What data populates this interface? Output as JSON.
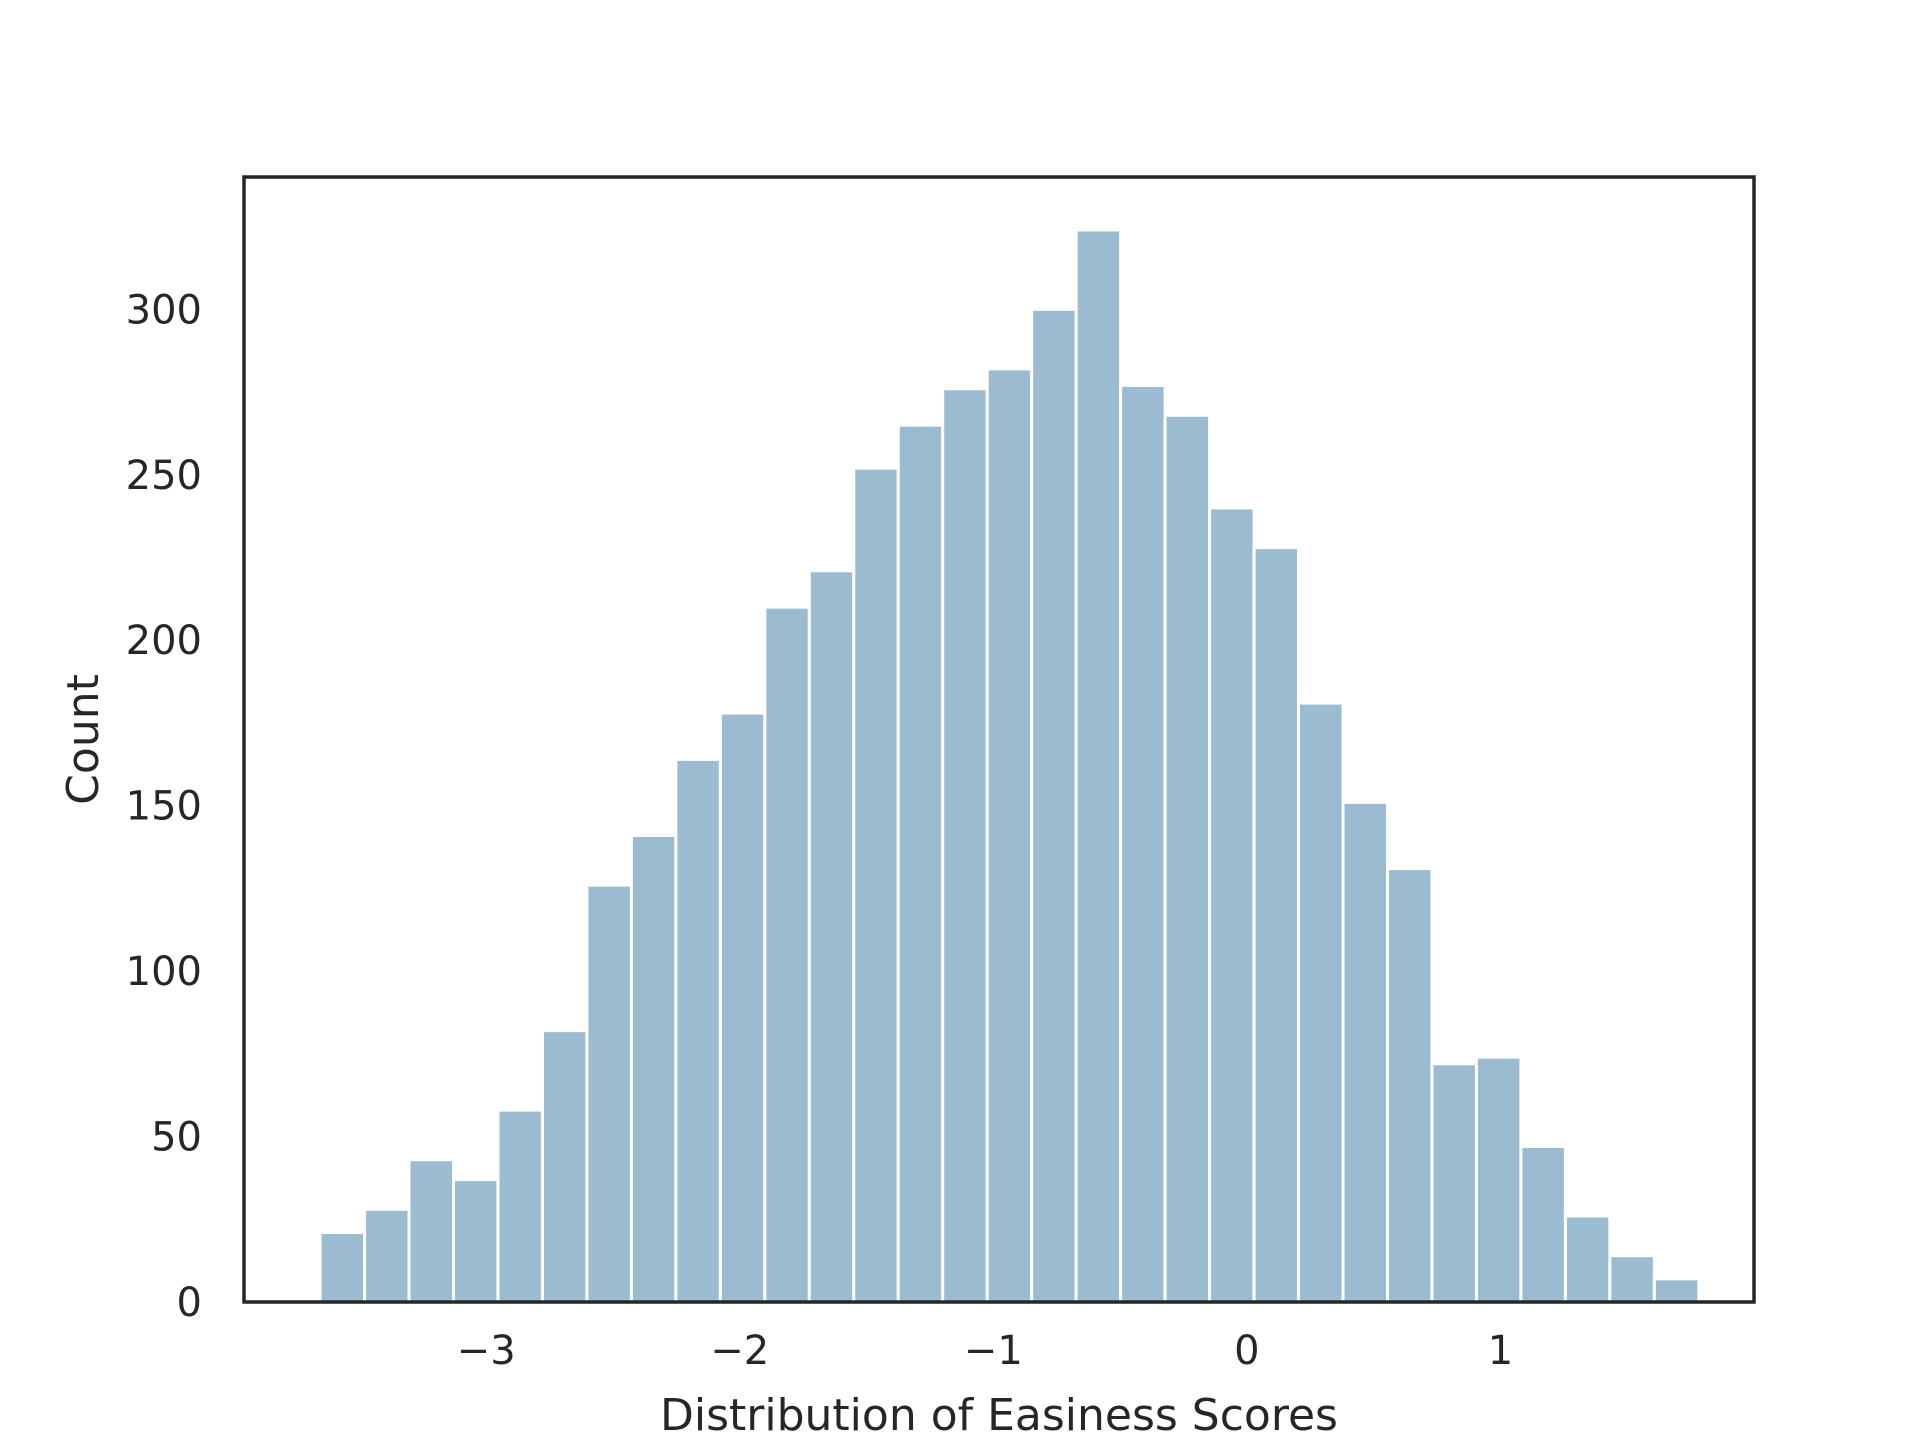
{
  "chart_data": {
    "type": "bar",
    "title": "",
    "xlabel": "Distribution of Easiness Scores",
    "ylabel": "Count",
    "bin_start": -3.655,
    "bin_width": 0.1754,
    "values": [
      21,
      28,
      43,
      37,
      58,
      82,
      126,
      141,
      164,
      178,
      210,
      221,
      252,
      265,
      276,
      282,
      300,
      324,
      277,
      268,
      240,
      228,
      181,
      151,
      131,
      72,
      74,
      47,
      26,
      14,
      7
    ],
    "xlim": [
      -3.955,
      2.0
    ],
    "ylim": [
      0,
      340
    ],
    "xticks": [
      -3,
      -2,
      -1,
      0,
      1
    ],
    "xtick_labels": [
      "−3",
      "−2",
      "−1",
      "0",
      "1"
    ],
    "yticks": [
      0,
      50,
      100,
      150,
      200,
      250,
      300
    ],
    "ytick_labels": [
      "0",
      "50",
      "100",
      "150",
      "200",
      "250",
      "300"
    ],
    "grid": false,
    "bar_color": "#9bbbd0",
    "bar_edge_color": "#ffffff",
    "axis_color": "#262626"
  }
}
